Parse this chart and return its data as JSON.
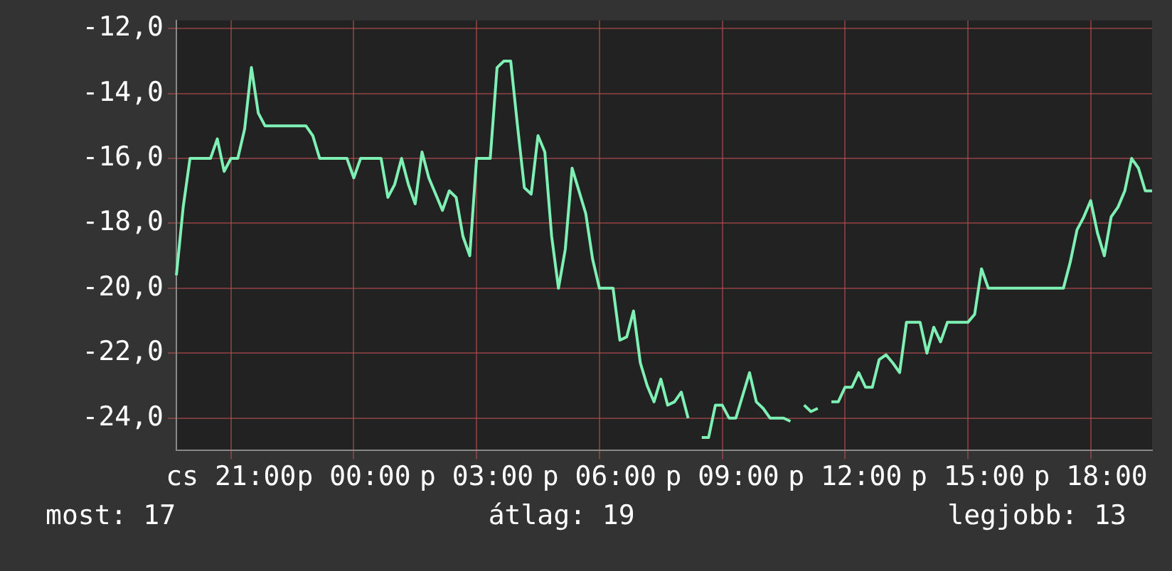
{
  "chart_data": {
    "type": "line",
    "categories": [
      null,
      null,
      null,
      null,
      null,
      null,
      null,
      null,
      "cs 21:00",
      null,
      null,
      null,
      null,
      null,
      null,
      null,
      null,
      null,
      null,
      null,
      null,
      null,
      null,
      null,
      null,
      null,
      "p 00:00",
      null,
      null,
      null,
      null,
      null,
      null,
      null,
      null,
      null,
      null,
      null,
      null,
      null,
      null,
      null,
      null,
      null,
      "p 03:00",
      null,
      null,
      null,
      null,
      null,
      null,
      null,
      null,
      null,
      null,
      null,
      null,
      null,
      null,
      null,
      null,
      null,
      "p 06:00",
      null,
      null,
      null,
      null,
      null,
      null,
      null,
      null,
      null,
      null,
      null,
      null,
      null,
      null,
      null,
      null,
      null,
      "p 09:00",
      null,
      null,
      null,
      null,
      null,
      null,
      null,
      null,
      null,
      null,
      null,
      null,
      null,
      null,
      null,
      null,
      null,
      "p 12:00",
      null,
      null,
      null,
      null,
      null,
      null,
      null,
      null,
      null,
      null,
      null,
      null,
      null,
      null,
      null,
      null,
      null,
      "p 15:00",
      null,
      null,
      null,
      null,
      null,
      null,
      null,
      null,
      null,
      null,
      null,
      null,
      null,
      null,
      null,
      null,
      null,
      "p 18:00",
      null,
      null,
      null,
      null,
      null,
      null,
      null,
      null,
      null
    ],
    "values": [
      -19.6,
      -17.5,
      -16,
      -16,
      -16,
      -16,
      -15.4,
      -16.4,
      -16,
      -16,
      -15.1,
      -13.2,
      -14.6,
      -15,
      -15,
      -15,
      -15,
      -15,
      -15,
      -15,
      -15.3,
      -16,
      -16,
      -16,
      -16,
      -16,
      -16.6,
      -16,
      -16,
      -16,
      -16,
      -17.2,
      -16.8,
      -16,
      -16.8,
      -17.4,
      -15.8,
      -16.6,
      -17.1,
      -17.6,
      -17,
      -17.2,
      -18.4,
      -19,
      -16,
      -16,
      -16,
      -13.2,
      -13,
      -13,
      -15,
      -16.9,
      -17.1,
      -15.3,
      -15.8,
      -18.4,
      -20,
      -18.8,
      -16.3,
      -17,
      -17.7,
      -19.1,
      -20,
      -20,
      -20,
      -21.6,
      -21.5,
      -20.7,
      -22.3,
      -23,
      -23.5,
      -22.8,
      -23.6,
      -23.5,
      -23.2,
      -24,
      null,
      -24.6,
      -24.6,
      -23.6,
      -23.6,
      -24,
      -24,
      -23.3,
      -22.6,
      -23.5,
      -23.7,
      -24,
      -24,
      -24,
      -24.1,
      null,
      -23.6,
      -23.8,
      -23.7,
      null,
      -23.5,
      -23.5,
      -23.05,
      -23.05,
      -22.6,
      -23.05,
      -23.05,
      -22.2,
      -22.05,
      -22.3,
      -22.6,
      -21.05,
      -21.05,
      -21.05,
      -22,
      -21.2,
      -21.65,
      -21.05,
      -21.05,
      -21.05,
      -21.05,
      -20.8,
      -19.4,
      -20,
      -20,
      -20,
      -20,
      -20,
      -20,
      -20,
      -20,
      -20,
      -20,
      -20,
      -20,
      -19.2,
      -18.2,
      -17.8,
      -17.3,
      -18.3,
      -19,
      -17.8,
      -17.5,
      -17,
      -16,
      -16.3,
      -17,
      -17
    ],
    "color": "#7ff0b4",
    "ylim": [
      -25,
      -11.75
    ],
    "yticks": [
      {
        "value": -24,
        "label": "-24,0"
      },
      {
        "value": -22,
        "label": "-22,0"
      },
      {
        "value": -20,
        "label": "-20,0"
      },
      {
        "value": -18,
        "label": "-18,0"
      },
      {
        "value": -16,
        "label": "-16,0"
      },
      {
        "value": -14,
        "label": "-14,0"
      },
      {
        "value": -12,
        "label": "-12,0"
      }
    ],
    "grid": true,
    "marker": "none",
    "line_style": "solid",
    "annotations": [
      "most: 17",
      "átlag: 19",
      "legjobb: 13"
    ]
  }
}
